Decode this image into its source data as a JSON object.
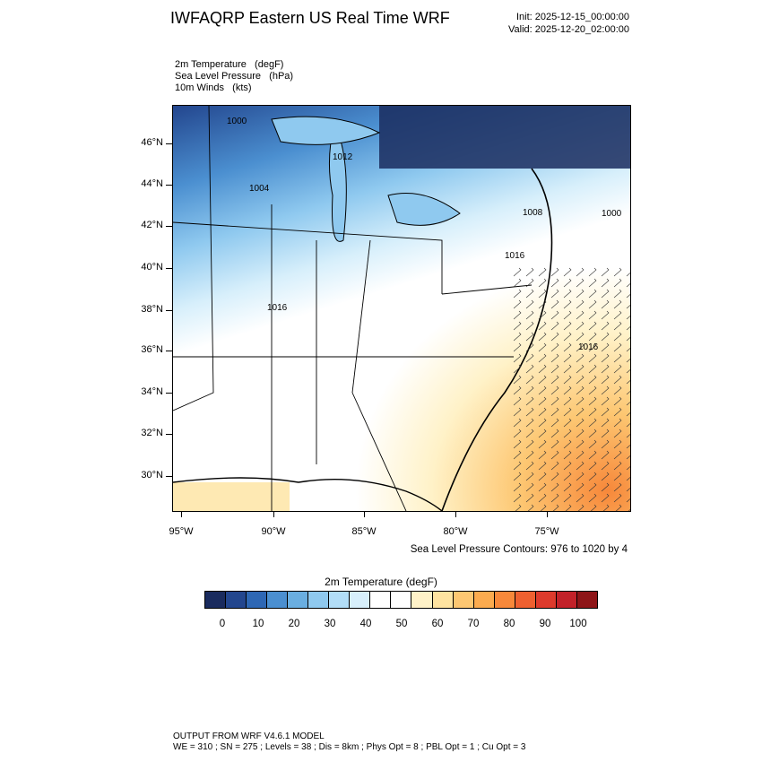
{
  "header": {
    "title": "IWFAQRP Eastern US Real Time WRF",
    "init": "Init: 2025-12-15_00:00:00",
    "valid": "Valid: 2025-12-20_02:00:00"
  },
  "fields": [
    "2m Temperature   (degF)",
    "Sea Level Pressure   (hPa)",
    "10m Winds   (kts)"
  ],
  "map": {
    "lat_labels": [
      "46°N",
      "44°N",
      "42°N",
      "40°N",
      "38°N",
      "36°N",
      "34°N",
      "32°N",
      "30°N"
    ],
    "lon_labels": [
      "95°W",
      "90°W",
      "85°W",
      "80°W",
      "75°W"
    ],
    "pressure_labels": [
      "1000",
      "1012",
      "1004",
      "1008",
      "1000",
      "1016",
      "1016",
      "1016"
    ],
    "contour_note": "Sea Level Pressure Contours: 976 to 1020 by 4"
  },
  "colorbar": {
    "title": "2m Temperature  (degF)",
    "colors": [
      "#1a2b5e",
      "#23468e",
      "#2e67b4",
      "#4b8fd0",
      "#6aaee0",
      "#8fc9ef",
      "#b2ddf7",
      "#d7effb",
      "#ffffff",
      "#ffffff",
      "#fff2c8",
      "#fee3a0",
      "#fdc772",
      "#fbab4f",
      "#f7883a",
      "#ee6030",
      "#dd3a2c",
      "#c22129",
      "#8e1518"
    ],
    "labels": [
      "0",
      "10",
      "20",
      "30",
      "40",
      "50",
      "60",
      "70",
      "80",
      "90",
      "100"
    ]
  },
  "footer": {
    "line1": "OUTPUT FROM WRF V4.6.1 MODEL",
    "line2": "WE = 310 ; SN = 275 ; Levels = 38 ; Dis = 8km ; Phys Opt = 8 ; PBL Opt = 1 ; Cu Opt = 3"
  }
}
